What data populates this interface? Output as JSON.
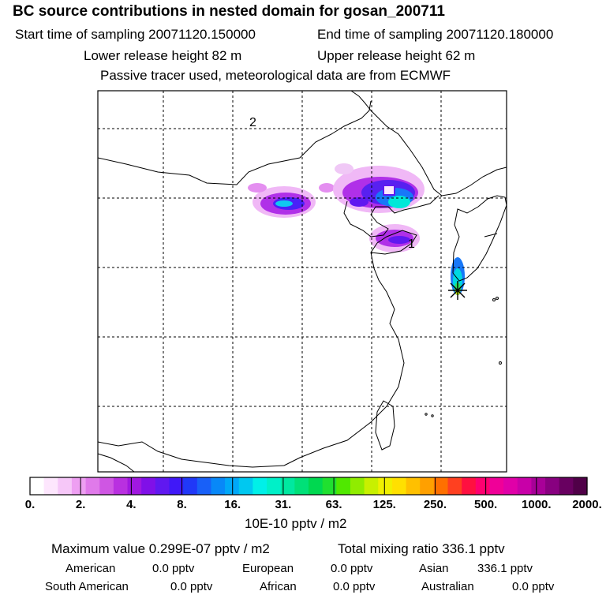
{
  "header": {
    "title": "BC  source contributions in nested domain for gosan_200711",
    "start_time": "Start time of sampling 20071120.150000",
    "end_time": "End time of sampling 20071120.180000",
    "lower_height": "Lower release height   82 m",
    "upper_height": "Upper release height   62 m",
    "note": "Passive tracer used, meteorological data are from ECMWF"
  },
  "map": {
    "label_1": "1",
    "label_2": "2",
    "receptor_color": "#000000"
  },
  "colorbar": {
    "unit": "10E-10 pptv / m2",
    "tick_labels": [
      "0.",
      "2.",
      "4.",
      "8.",
      "16.",
      "31.",
      "63.",
      "125.",
      "250.",
      "500.",
      "1000.",
      "2000."
    ],
    "colors": [
      "#ffffff",
      "#fde6fd",
      "#f6c7f8",
      "#ee9ff2",
      "#e07aea",
      "#cf56e3",
      "#b930e0",
      "#a018e0",
      "#8010e8",
      "#6018f0",
      "#4018f8",
      "#2038f8",
      "#1860f8",
      "#0888f8",
      "#00a8f8",
      "#00c8f0",
      "#00f0e8",
      "#00f0c8",
      "#00e8a0",
      "#00e078",
      "#00d850",
      "#20e030",
      "#50e800",
      "#90ec00",
      "#c8f000",
      "#f0f000",
      "#ffe000",
      "#ffc000",
      "#ffa000",
      "#ff7000",
      "#ff4020",
      "#ff1040",
      "#ff0070",
      "#f00098",
      "#e000a8",
      "#c800a8",
      "#a80098",
      "#880080",
      "#680060",
      "#500048"
    ]
  },
  "stats": {
    "maximum": "Maximum value  0.299E-07 pptv / m2",
    "total": "Total mixing ratio      336.1 pptv",
    "contributions": [
      {
        "name": "American",
        "value": "0.0 pptv"
      },
      {
        "name": "European",
        "value": "0.0 pptv"
      },
      {
        "name": "Asian",
        "value": "336.1 pptv"
      },
      {
        "name": "South American",
        "value": "0.0 pptv"
      },
      {
        "name": "African",
        "value": "0.0 pptv"
      },
      {
        "name": "Australian",
        "value": "0.0 pptv"
      }
    ]
  }
}
